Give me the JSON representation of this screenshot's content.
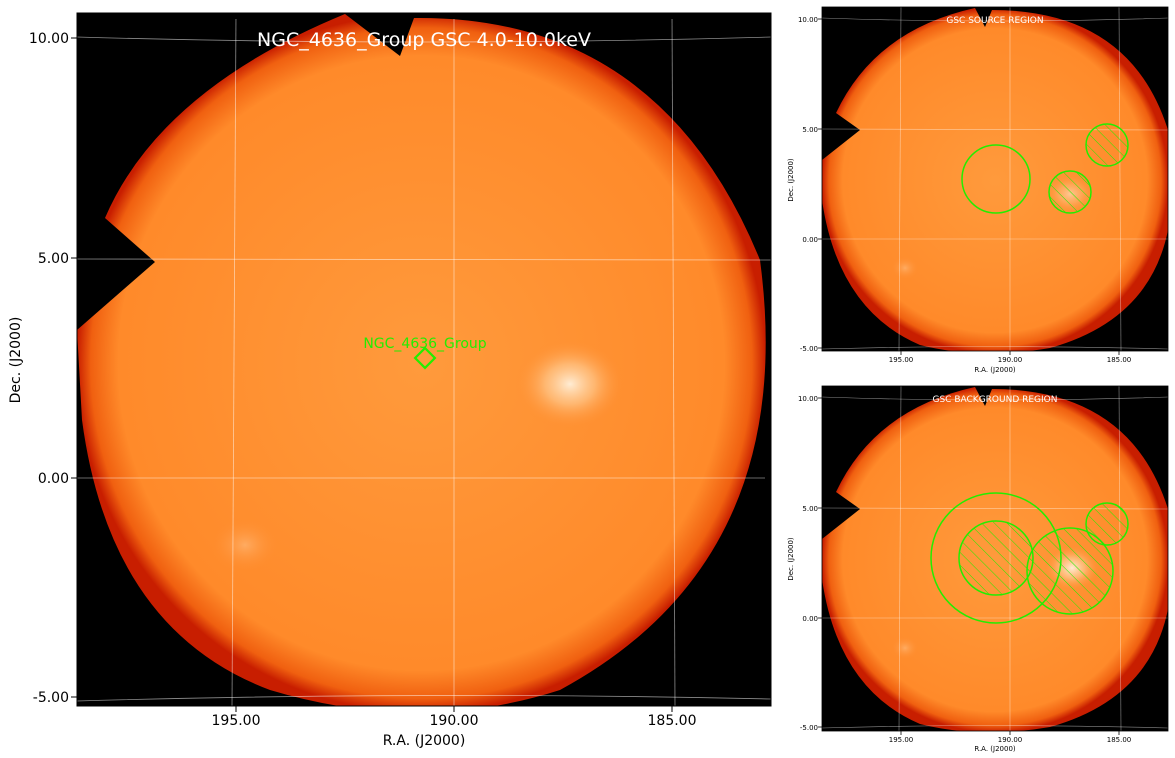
{
  "colors": {
    "background": "#000000",
    "disk": "#ff8a2a",
    "disk_edge": "#d22a00",
    "region": "#22ee00",
    "grid": "#ffffff",
    "text": "#000000",
    "title": "#ffffff"
  },
  "main": {
    "title": "NGC_4636_Group GSC 4.0-10.0keV",
    "source_label": "NGC_4636_Group",
    "xlabel": "R.A. (J2000)",
    "ylabel": "Dec. (J2000)",
    "x_ticks": [
      "195.00",
      "190.00",
      "185.00"
    ],
    "y_ticks": [
      "10.00",
      "5.00",
      "0.00",
      "-5.00"
    ]
  },
  "source_panel": {
    "title": "GSC SOURCE REGION",
    "xlabel": "R.A. (J2000)",
    "ylabel": "Dec. (J2000)",
    "x_ticks": [
      "195.00",
      "190.00",
      "185.00"
    ],
    "y_ticks": [
      "10.00",
      "5.00",
      "0.00",
      "-5.00"
    ]
  },
  "background_panel": {
    "title": "GSC BACKGROUND REGION",
    "xlabel": "R.A. (J2000)",
    "ylabel": "Dec. (J2000)",
    "x_ticks": [
      "195.00",
      "190.00",
      "185.00"
    ],
    "y_ticks": [
      "10.00",
      "5.00",
      "0.00",
      "-5.00"
    ]
  }
}
